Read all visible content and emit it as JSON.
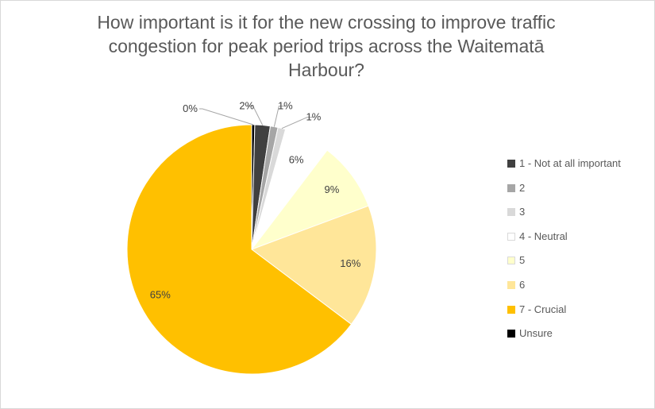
{
  "chart_data": {
    "type": "pie",
    "title_lines": [
      "How important is it for the new crossing to improve traffic",
      "congestion for peak period trips across the Waitematā",
      "Harbour?"
    ],
    "categories": [
      "1 - Not at all important",
      "2",
      "3",
      "4 - Neutral",
      "5",
      "6",
      "7 - Crucial",
      "Unsure"
    ],
    "values": [
      2,
      1,
      1,
      6,
      9,
      16,
      65,
      0
    ],
    "data_labels": [
      "2%",
      "1%",
      "1%",
      "6%",
      "9%",
      "16%",
      "65%",
      "0%"
    ],
    "colors": [
      "#404040",
      "#a6a6a6",
      "#d9d9d9",
      "#ffffff",
      "#ffffcc",
      "#ffe699",
      "#ffc000",
      "#000000"
    ],
    "legend_position": "right"
  }
}
